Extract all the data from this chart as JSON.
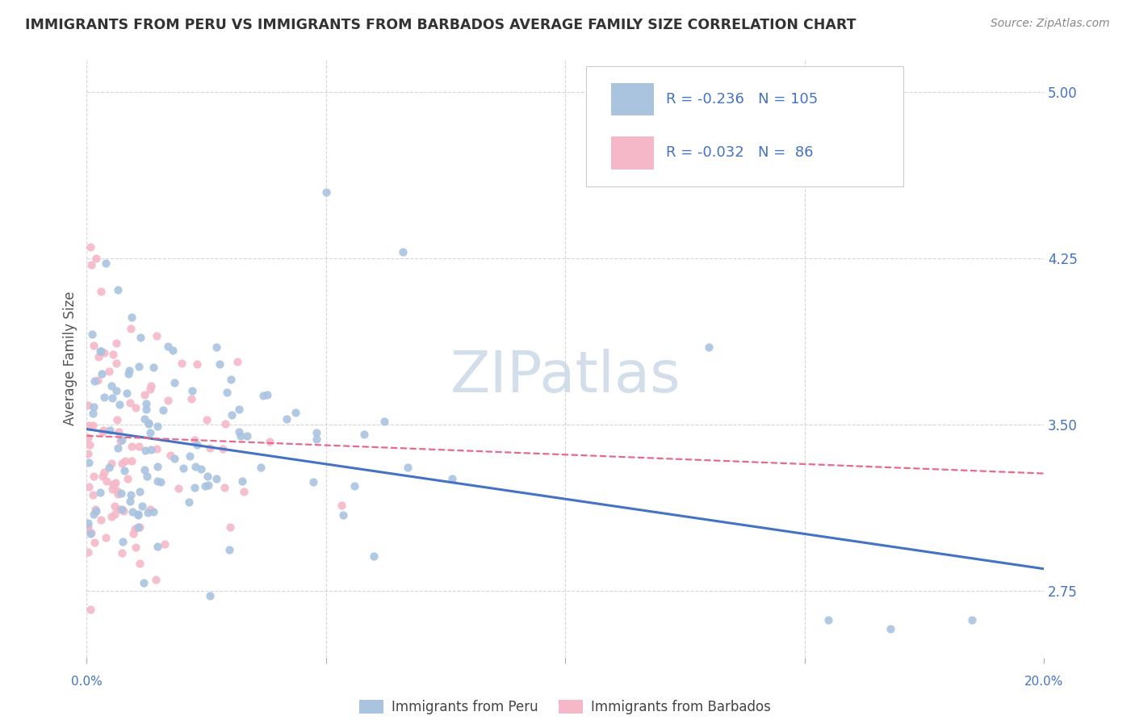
{
  "title": "IMMIGRANTS FROM PERU VS IMMIGRANTS FROM BARBADOS AVERAGE FAMILY SIZE CORRELATION CHART",
  "source": "Source: ZipAtlas.com",
  "ylabel": "Average Family Size",
  "right_yticks": [
    2.75,
    3.5,
    4.25,
    5.0
  ],
  "xlim": [
    0.0,
    0.2
  ],
  "ylim": [
    2.45,
    5.15
  ],
  "legend_peru_R": "-0.236",
  "legend_peru_N": "105",
  "legend_barbados_R": "-0.032",
  "legend_barbados_N": "86",
  "background_color": "#ffffff",
  "grid_color": "#cccccc",
  "peru_scatter_color": "#aac4e0",
  "barbados_scatter_color": "#f4b8c8",
  "peru_line_color": "#4472c4",
  "barbados_line_color": "#e8698a",
  "watermark_color": "#ccd9e8",
  "title_color": "#333333",
  "source_color": "#888888",
  "tick_color": "#555555"
}
